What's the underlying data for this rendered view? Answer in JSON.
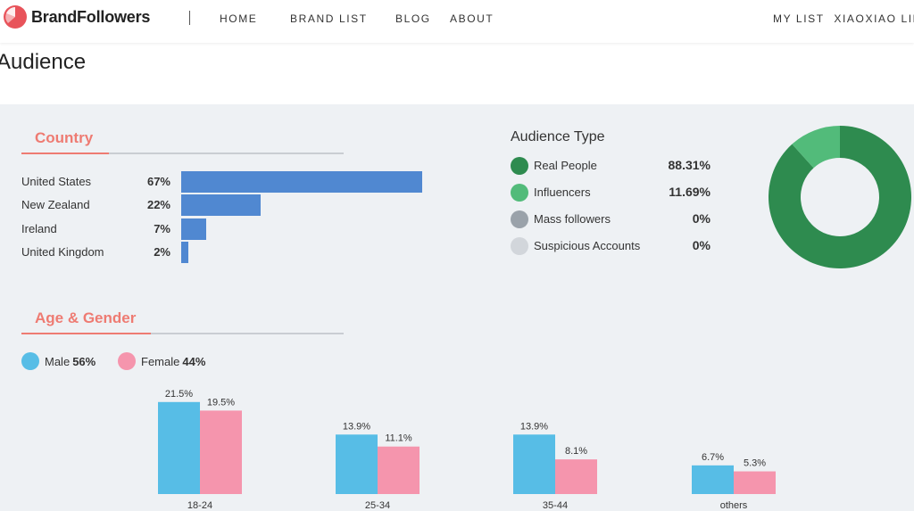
{
  "nav": {
    "brand": "BrandFollowers",
    "items": [
      "HOME",
      "BRAND LIST",
      "BLOG",
      "ABOUT"
    ],
    "my_list": "MY LIST",
    "user": "XIAOXIAO LIN"
  },
  "page": {
    "title": "Audience"
  },
  "country": {
    "title": "Country",
    "rows": [
      {
        "name": "United States",
        "pct": "67%",
        "value": 67
      },
      {
        "name": "New Zealand",
        "pct": "22%",
        "value": 22
      },
      {
        "name": "Ireland",
        "pct": "7%",
        "value": 7
      },
      {
        "name": "United Kingdom",
        "pct": "2%",
        "value": 2
      }
    ]
  },
  "audience_type": {
    "title": "Audience Type",
    "rows": [
      {
        "label": "Real People",
        "value": "88.31%",
        "color": "#2e8b4f"
      },
      {
        "label": "Influencers",
        "value": "11.69%",
        "color": "#52bb7a"
      },
      {
        "label": "Mass followers",
        "value": "0%",
        "color": "#9aa2aa"
      },
      {
        "label": "Suspicious Accounts",
        "value": "0%",
        "color": "#d2d6db"
      }
    ]
  },
  "age_gender": {
    "title": "Age & Gender",
    "male_label": "Male",
    "male_value": "56%",
    "female_label": "Female",
    "female_value": "44%"
  },
  "chart_data": [
    {
      "type": "bar",
      "categories": [
        "United States",
        "New Zealand",
        "Ireland",
        "United Kingdom"
      ],
      "values": [
        67,
        22,
        7,
        2
      ],
      "title": "Country",
      "color": "#5088d1"
    },
    {
      "type": "pie",
      "title": "Audience Type",
      "categories": [
        "Real People",
        "Influencers",
        "Mass followers",
        "Suspicious Accounts"
      ],
      "values": [
        88.31,
        11.69,
        0,
        0
      ],
      "colors": [
        "#2e8b4f",
        "#52bb7a",
        "#9aa2aa",
        "#d2d6db"
      ]
    },
    {
      "type": "bar",
      "title": "Age & Gender",
      "categories": [
        "18-24",
        "25-34",
        "35-44",
        "others"
      ],
      "series": [
        {
          "name": "Male",
          "values": [
            21.5,
            13.9,
            13.9,
            6.7
          ],
          "labels": [
            "21.5%",
            "13.9%",
            "13.9%",
            "6.7%"
          ],
          "color": "#57bde6"
        },
        {
          "name": "Female",
          "values": [
            19.5,
            11.1,
            8.1,
            5.3
          ],
          "labels": [
            "19.5%",
            "11.1%",
            "8.1%",
            "5.3%"
          ],
          "color": "#f595ad"
        }
      ]
    }
  ]
}
